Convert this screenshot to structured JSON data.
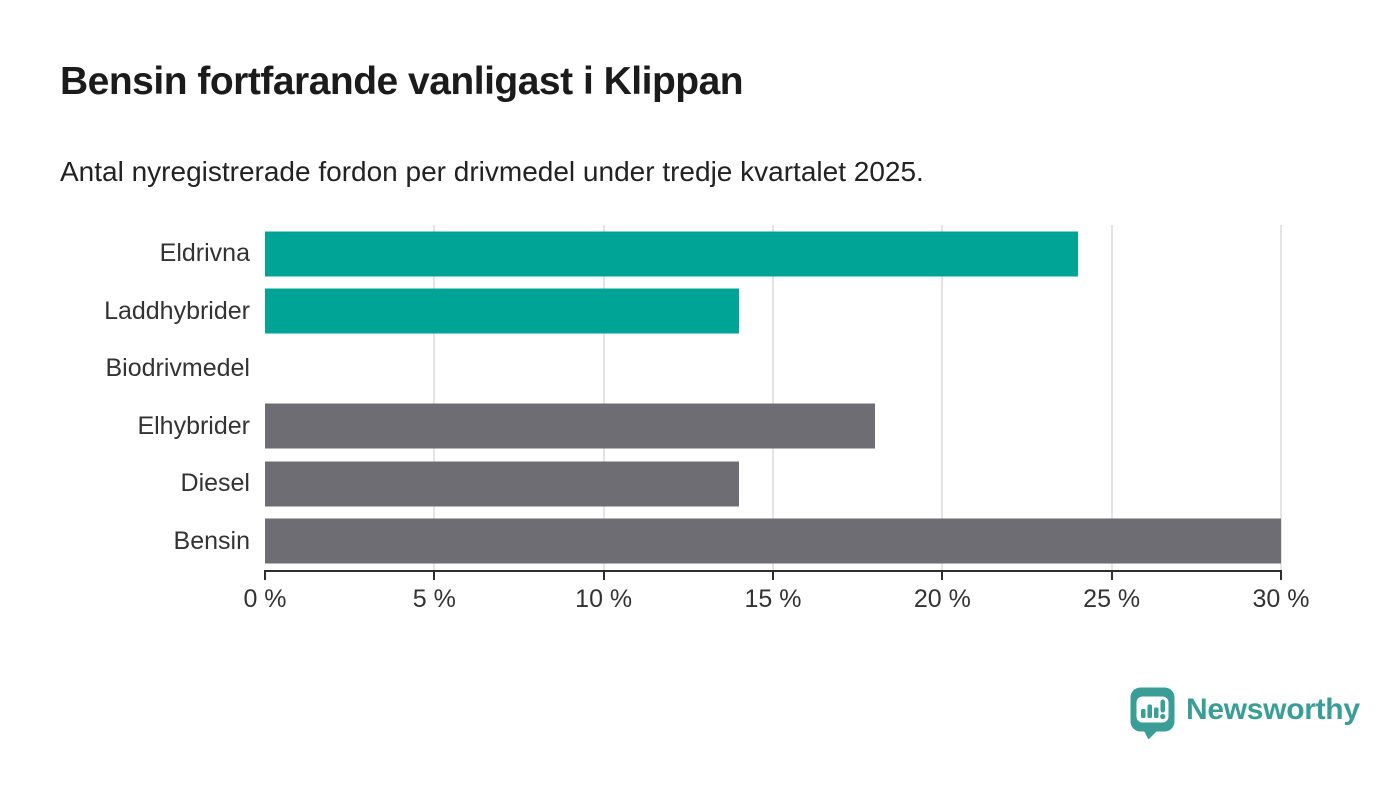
{
  "header": {
    "title": "Bensin fortfarande vanligast i Klippan",
    "subtitle": "Antal nyregistrerade fordon per drivmedel under tredje kvartalet 2025."
  },
  "chart_data": {
    "type": "bar",
    "orientation": "horizontal",
    "unit": "%",
    "categories": [
      "Eldrivna",
      "Laddhybrider",
      "Biodrivmedel",
      "Elhybrider",
      "Diesel",
      "Bensin"
    ],
    "values": [
      24,
      14,
      0,
      18,
      14,
      30
    ],
    "bar_colors": [
      "#00A497",
      "#00A497",
      "#6E6D73",
      "#6E6D73",
      "#6E6D73",
      "#6E6D73"
    ],
    "highlight_color": "#00A497",
    "default_bar_color": "#6E6D73",
    "x_tick_labels": [
      "0 %",
      "5 %",
      "10 %",
      "15 %",
      "20 %",
      "25 %",
      "30 %"
    ],
    "x_tick_values": [
      0,
      5,
      10,
      15,
      20,
      25,
      30
    ],
    "xlim": [
      0,
      30
    ],
    "grid": true,
    "gridline_color": "#E4E4E4",
    "axis_color": "#2E2E2E",
    "legend": false,
    "xlabel": "",
    "ylabel": ""
  },
  "footer": {
    "brand_name": "Newsworthy",
    "brand_color": "#3B9E96"
  }
}
